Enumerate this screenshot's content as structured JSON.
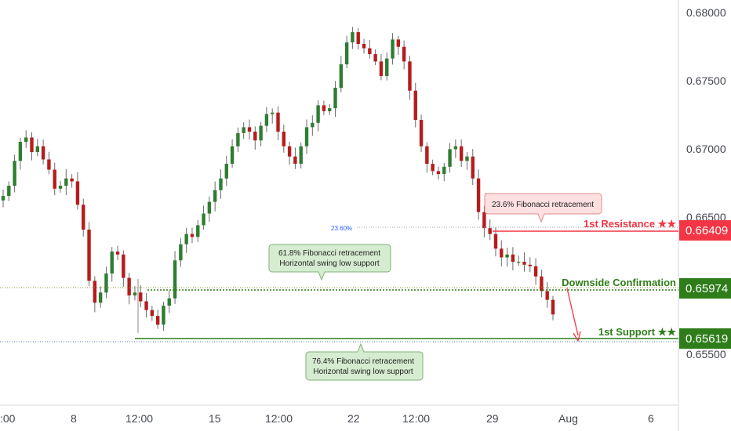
{
  "chart_data": {
    "type": "candlestick",
    "y_ticks": [
      "0.68000",
      "0.67500",
      "0.67000",
      "0.66500",
      "0.65500"
    ],
    "x_ticks": [
      ":00",
      "8",
      "12:00",
      "15",
      "12:00",
      "22",
      "12:00",
      "29",
      "Aug",
      "6"
    ],
    "ylim": [
      0.6535,
      0.6812
    ],
    "grid": false,
    "series": [
      {
        "values": [
          0.6678,
          0.6685,
          0.6702,
          0.6715,
          0.6718,
          0.6708,
          0.6712,
          0.6703,
          0.6696,
          0.6683,
          0.6685,
          0.669,
          0.6688,
          0.6672,
          0.6655,
          0.662,
          0.6605,
          0.6612,
          0.6625,
          0.664,
          0.6638,
          0.6622,
          0.661,
          0.6612,
          0.6606,
          0.66,
          0.6596,
          0.659,
          0.6603,
          0.6608,
          0.6634,
          0.6645,
          0.6652,
          0.665,
          0.6658,
          0.6666,
          0.6674,
          0.6682,
          0.669,
          0.67,
          0.6712,
          0.6721,
          0.6725,
          0.6722,
          0.6716,
          0.6726,
          0.6734,
          0.6735,
          0.6722,
          0.6712,
          0.6705,
          0.67,
          0.6712,
          0.6725,
          0.6728,
          0.674,
          0.6736,
          0.6738,
          0.6752,
          0.6768,
          0.6783,
          0.679,
          0.6782,
          0.6779,
          0.6775,
          0.677,
          0.676,
          0.6772,
          0.6785,
          0.678,
          0.677,
          0.675,
          0.673,
          0.6712,
          0.67,
          0.6695,
          0.6693,
          0.6698,
          0.671,
          0.6712,
          0.6702,
          0.6705,
          0.669,
          0.6667,
          0.6656,
          0.6652,
          0.6642,
          0.6636,
          0.6638,
          0.6633,
          0.6633,
          0.6631,
          0.663,
          0.6623,
          0.6613,
          0.6607,
          0.6597
        ]
      }
    ],
    "annotations": {
      "fib_label": "23.60%",
      "callout_top": "23.6% Fibonacci retracement",
      "callout_mid": [
        "61.8% Fibonacci retracement",
        "Horizontal swing low support"
      ],
      "callout_low": [
        "76.4% Fibonacci retracement",
        "Horizontal swing low support"
      ]
    },
    "levels": [
      {
        "label": "1st Resistance ★★",
        "price": "0.66409",
        "color": "#f23645"
      },
      {
        "label": "Downside Confirmation",
        "price": "0.65974",
        "color": "#2e7d1a"
      },
      {
        "label": "1st Support ★★",
        "price": "0.65619",
        "color": "#2e7d1a"
      }
    ],
    "colors": {
      "up": "#2e7d32",
      "down": "#b71c1c"
    }
  }
}
